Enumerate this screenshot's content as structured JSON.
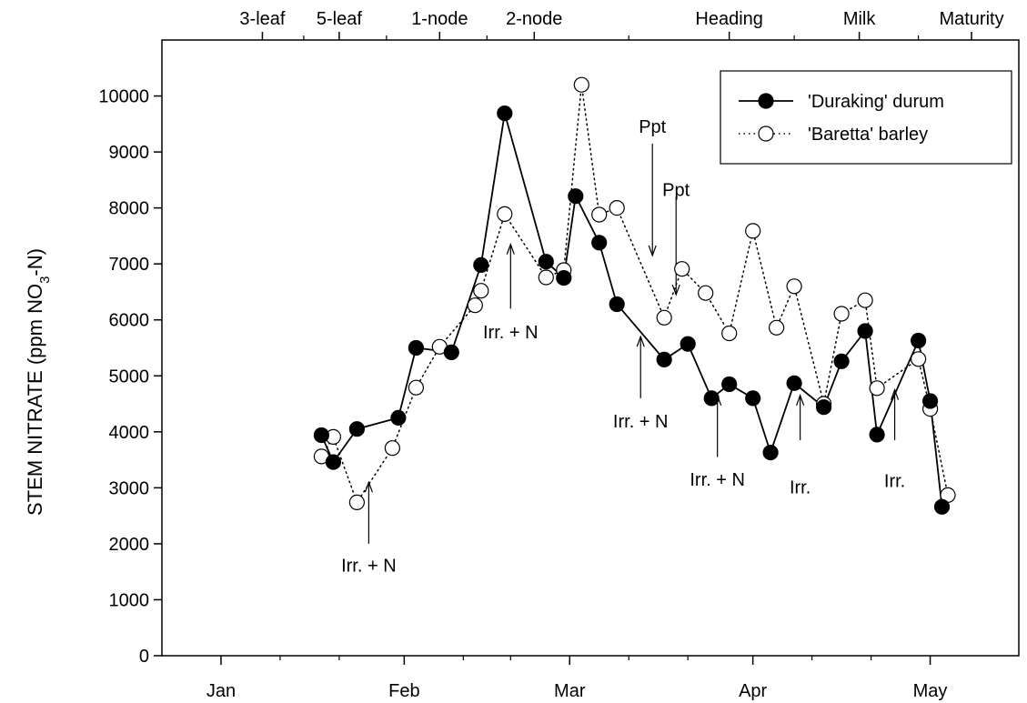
{
  "chart_data": {
    "type": "line",
    "ylabel_main": "STEM NITRATE (ppm NO",
    "ylabel_sub": "3",
    "ylabel_tail": "-N)",
    "ylim": [
      0,
      11000
    ],
    "y_ticks": [
      0,
      1000,
      2000,
      3000,
      4000,
      5000,
      6000,
      7000,
      8000,
      9000,
      10000
    ],
    "x_ticks": [
      {
        "label": "Jan",
        "day": 1
      },
      {
        "label": "Feb",
        "day": 32
      },
      {
        "label": "Mar",
        "day": 60
      },
      {
        "label": "Apr",
        "day": 91
      },
      {
        "label": "May",
        "day": 121
      }
    ],
    "x_minor_days": [
      11,
      21,
      42,
      50,
      70,
      80,
      101,
      111
    ],
    "top_axis_stages": [
      {
        "label": "3-leaf",
        "day": 8
      },
      {
        "label": "5-leaf",
        "day": 21
      },
      {
        "label": "1-node",
        "day": 38
      },
      {
        "label": "2-node",
        "day": 54
      },
      {
        "label": "Heading",
        "day": 87
      },
      {
        "label": "Milk",
        "day": 109
      },
      {
        "label": "Maturity",
        "day": 128
      }
    ],
    "top_minor_days": [
      15,
      29,
      46,
      70,
      98,
      119
    ],
    "series": [
      {
        "name": "'Duraking' durum",
        "style": "solid",
        "marker": "filled-circle",
        "points": [
          {
            "day": 18,
            "y": 3940
          },
          {
            "day": 20,
            "y": 3460
          },
          {
            "day": 24,
            "y": 4050
          },
          {
            "day": 31,
            "y": 4250
          },
          {
            "day": 34,
            "y": 5500
          },
          {
            "day": 40,
            "y": 5420
          },
          {
            "day": 45,
            "y": 6980
          },
          {
            "day": 49,
            "y": 9690
          },
          {
            "day": 56,
            "y": 7040
          },
          {
            "day": 59,
            "y": 6750
          },
          {
            "day": 61,
            "y": 8210
          },
          {
            "day": 65,
            "y": 7380
          },
          {
            "day": 68,
            "y": 6280
          },
          {
            "day": 76,
            "y": 5290
          },
          {
            "day": 80,
            "y": 5570
          },
          {
            "day": 84,
            "y": 4600
          },
          {
            "day": 87,
            "y": 4850
          },
          {
            "day": 91,
            "y": 4600
          },
          {
            "day": 94,
            "y": 3630
          },
          {
            "day": 98,
            "y": 4870
          },
          {
            "day": 103,
            "y": 4440
          },
          {
            "day": 106,
            "y": 5260
          },
          {
            "day": 110,
            "y": 5800
          },
          {
            "day": 112,
            "y": 3950
          },
          {
            "day": 119,
            "y": 5630
          },
          {
            "day": 121,
            "y": 4550
          },
          {
            "day": 123,
            "y": 2660
          }
        ]
      },
      {
        "name": "'Baretta' barley",
        "style": "dotted",
        "marker": "open-circle",
        "points": [
          {
            "day": 18,
            "y": 3560
          },
          {
            "day": 20,
            "y": 3910
          },
          {
            "day": 24,
            "y": 2740
          },
          {
            "day": 30,
            "y": 3710
          },
          {
            "day": 34,
            "y": 4790
          },
          {
            "day": 38,
            "y": 5520
          },
          {
            "day": 44,
            "y": 6260
          },
          {
            "day": 45,
            "y": 6520
          },
          {
            "day": 49,
            "y": 7890
          },
          {
            "day": 56,
            "y": 6760
          },
          {
            "day": 59,
            "y": 6890
          },
          {
            "day": 62,
            "y": 10200
          },
          {
            "day": 65,
            "y": 7880
          },
          {
            "day": 68,
            "y": 8000
          },
          {
            "day": 76,
            "y": 6040
          },
          {
            "day": 79,
            "y": 6910
          },
          {
            "day": 83,
            "y": 6480
          },
          {
            "day": 87,
            "y": 5760
          },
          {
            "day": 91,
            "y": 7590
          },
          {
            "day": 95,
            "y": 5860
          },
          {
            "day": 98,
            "y": 6600
          },
          {
            "day": 103,
            "y": 4500
          },
          {
            "day": 106,
            "y": 6110
          },
          {
            "day": 110,
            "y": 6350
          },
          {
            "day": 112,
            "y": 4780
          },
          {
            "day": 119,
            "y": 5300
          },
          {
            "day": 121,
            "y": 4410
          },
          {
            "day": 124,
            "y": 2870
          }
        ]
      }
    ],
    "annotations": [
      {
        "text": "Irr. + N",
        "day": 26,
        "arrow_from": 2000,
        "arrow_to": 3100,
        "text_y": 1500
      },
      {
        "text": "Irr. + N",
        "day": 50,
        "arrow_from": 6200,
        "arrow_to": 7350,
        "text_y": 5670
      },
      {
        "text": "Irr. + N",
        "day": 72,
        "arrow_from": 4600,
        "arrow_to": 5700,
        "text_y": 4080
      },
      {
        "text": "Irr. + N",
        "day": 85,
        "arrow_from": 3550,
        "arrow_to": 4650,
        "text_y": 3040
      },
      {
        "text": "Irr.",
        "day": 99,
        "arrow_from": 3850,
        "arrow_to": 4650,
        "text_y": 2900
      },
      {
        "text": "Irr.",
        "day": 115,
        "arrow_from": 3850,
        "arrow_to": 4750,
        "text_y": 3010
      },
      {
        "text": "Ppt",
        "day": 74,
        "arrow_from": 9150,
        "arrow_to": 7150,
        "text_y": 9340
      },
      {
        "text": "Ppt",
        "day": 78,
        "arrow_from": 8200,
        "arrow_to": 6450,
        "text_y": 8210
      }
    ],
    "legend": {
      "position": "top-right",
      "entries": [
        "'Duraking' durum",
        "'Baretta' barley"
      ]
    }
  }
}
